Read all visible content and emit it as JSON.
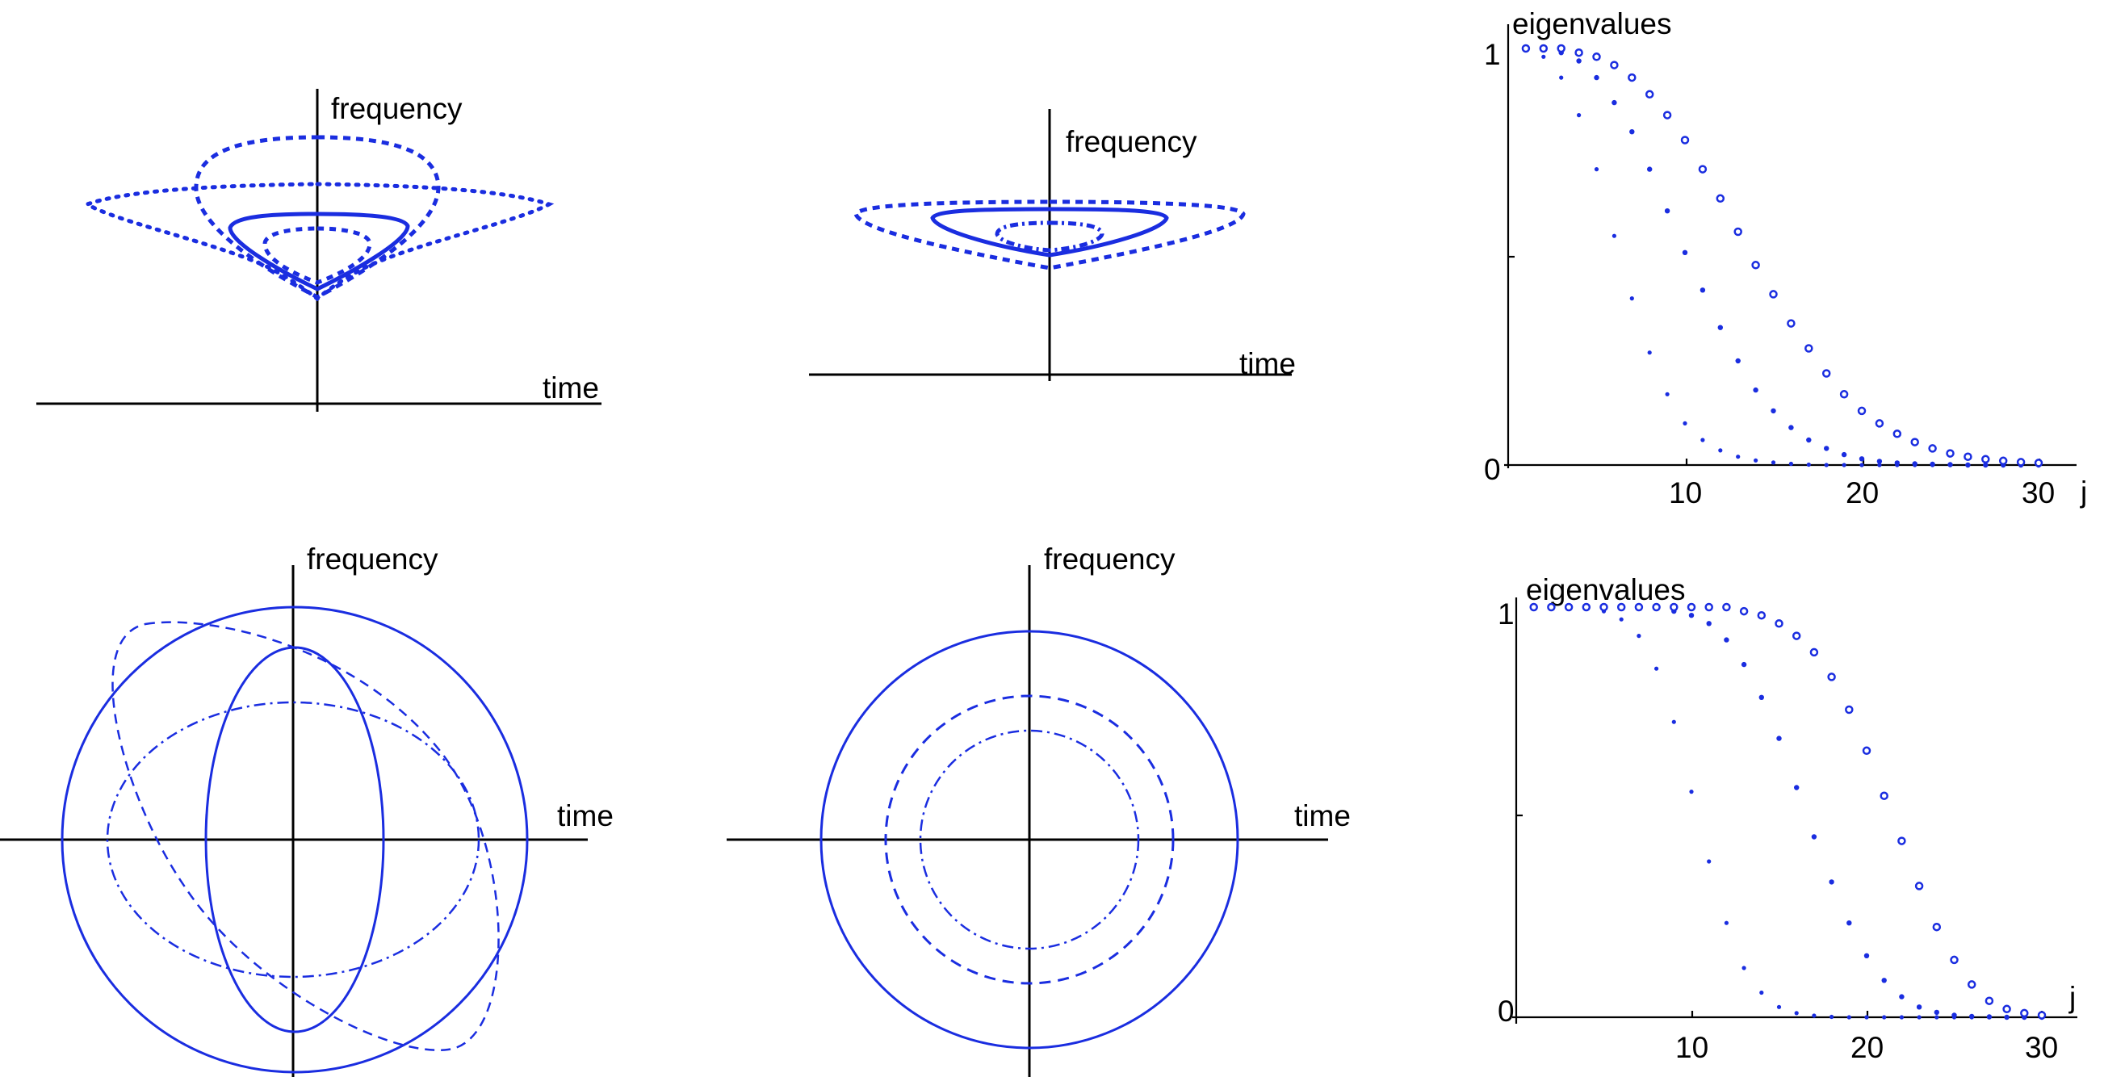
{
  "labels": {
    "frequency": "frequency",
    "time": "time",
    "eigenvalues": "eigenvalues",
    "j": "j",
    "tick_0": "0",
    "tick_1": "1",
    "tick_10": "10",
    "tick_20": "20",
    "tick_30": "30"
  },
  "colors": {
    "curve": "#1a2de0",
    "axis": "#000000"
  },
  "chart_data": [
    {
      "type": "scatter",
      "ylabel": "eigenvalues",
      "xlabel": "j",
      "xlim": [
        0,
        32
      ],
      "ylim": [
        0,
        1
      ],
      "xticks": [
        10,
        20,
        30
      ],
      "yticks": [
        0,
        1
      ],
      "series": [
        {
          "values": [
            1.0,
            0.98,
            0.93,
            0.84,
            0.71,
            0.55,
            0.4,
            0.27,
            0.17,
            0.1,
            0.06,
            0.035,
            0.02,
            0.011,
            0.006,
            0.003,
            0.001,
            0.0,
            0.0,
            0.0,
            0.0,
            0.0,
            0.0,
            0.0,
            0.0,
            0.0,
            0.0,
            0.0,
            0.0,
            0.0
          ],
          "marker": "small"
        },
        {
          "values": [
            1.0,
            1.0,
            0.99,
            0.97,
            0.93,
            0.87,
            0.8,
            0.71,
            0.61,
            0.51,
            0.42,
            0.33,
            0.25,
            0.18,
            0.13,
            0.09,
            0.06,
            0.04,
            0.025,
            0.015,
            0.009,
            0.005,
            0.003,
            0.002,
            0.001,
            0.0,
            0.0,
            0.0,
            0.0,
            0.0
          ],
          "marker": "medium"
        },
        {
          "values": [
            1.0,
            1.0,
            1.0,
            0.99,
            0.98,
            0.96,
            0.93,
            0.89,
            0.84,
            0.78,
            0.71,
            0.64,
            0.56,
            0.48,
            0.41,
            0.34,
            0.28,
            0.22,
            0.17,
            0.13,
            0.1,
            0.075,
            0.055,
            0.04,
            0.028,
            0.02,
            0.014,
            0.01,
            0.007,
            0.005
          ],
          "marker": "open"
        }
      ]
    },
    {
      "type": "scatter",
      "ylabel": "eigenvalues",
      "xlabel": "j",
      "xlim": [
        0,
        32
      ],
      "ylim": [
        0,
        1
      ],
      "xticks": [
        10,
        20,
        30
      ],
      "yticks": [
        0,
        1
      ],
      "series": [
        {
          "values": [
            1.0,
            1.0,
            1.0,
            1.0,
            0.99,
            0.97,
            0.93,
            0.85,
            0.72,
            0.55,
            0.38,
            0.23,
            0.12,
            0.06,
            0.025,
            0.01,
            0.004,
            0.001,
            0.0,
            0.0,
            0.0,
            0.0,
            0.0,
            0.0,
            0.0,
            0.0,
            0.0,
            0.0,
            0.0,
            0.0
          ],
          "marker": "small"
        },
        {
          "values": [
            1.0,
            1.0,
            1.0,
            1.0,
            1.0,
            1.0,
            1.0,
            1.0,
            0.99,
            0.98,
            0.96,
            0.92,
            0.86,
            0.78,
            0.68,
            0.56,
            0.44,
            0.33,
            0.23,
            0.15,
            0.09,
            0.05,
            0.025,
            0.012,
            0.005,
            0.002,
            0.001,
            0.0,
            0.0,
            0.0
          ],
          "marker": "medium"
        },
        {
          "values": [
            1.0,
            1.0,
            1.0,
            1.0,
            1.0,
            1.0,
            1.0,
            1.0,
            1.0,
            1.0,
            1.0,
            1.0,
            0.99,
            0.98,
            0.96,
            0.93,
            0.89,
            0.83,
            0.75,
            0.65,
            0.54,
            0.43,
            0.32,
            0.22,
            0.14,
            0.08,
            0.04,
            0.02,
            0.01,
            0.005
          ],
          "marker": "open"
        }
      ]
    }
  ]
}
